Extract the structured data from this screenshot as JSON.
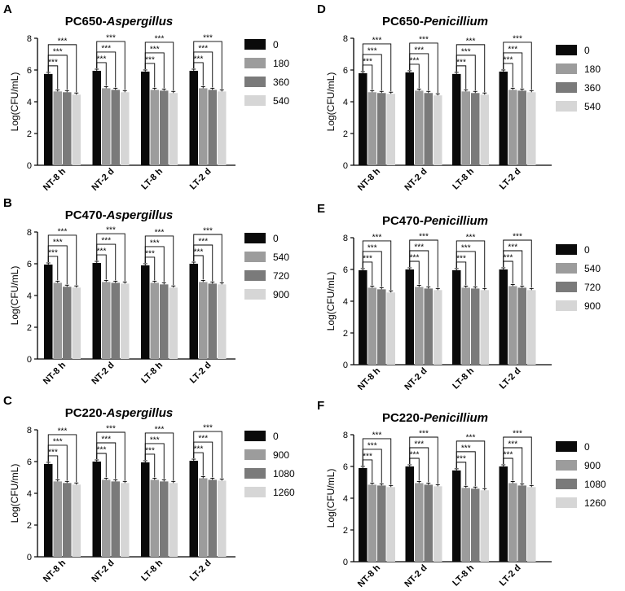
{
  "colors": {
    "s0": "#0a0a0a",
    "s1": "#9c9c9c",
    "s2": "#7a7a7a",
    "s3": "#d6d6d6"
  },
  "chart_data": [
    {
      "letter": "A",
      "type": "bar",
      "title_prefix": "PC650-",
      "title_genus": "Aspergillus",
      "ylabel": "Log(CFU/mL)",
      "ylim": [
        0,
        8
      ],
      "yticks": [
        0,
        2,
        4,
        6,
        8
      ],
      "categories": [
        "NT-8 h",
        "NT-2 d",
        "LT-8 h",
        "LT-2 d"
      ],
      "series": [
        {
          "name": "0",
          "values": [
            5.75,
            5.95,
            5.9,
            5.95
          ]
        },
        {
          "name": "180",
          "values": [
            4.65,
            4.85,
            4.75,
            4.85
          ]
        },
        {
          "name": "360",
          "values": [
            4.6,
            4.75,
            4.7,
            4.75
          ]
        },
        {
          "name": "540",
          "values": [
            4.45,
            4.6,
            4.55,
            4.65
          ]
        }
      ],
      "sig_label": "***"
    },
    {
      "letter": "D",
      "type": "bar",
      "title_prefix": "PC650-",
      "title_genus": "Penicillium",
      "ylabel": "Log(CFU/mL)",
      "ylim": [
        0,
        8
      ],
      "yticks": [
        0,
        2,
        4,
        6,
        8
      ],
      "categories": [
        "NT-8 h",
        "NT-2 d",
        "LT-8 h",
        "LT-2 d"
      ],
      "series": [
        {
          "name": "0",
          "values": [
            5.8,
            5.85,
            5.75,
            5.9
          ]
        },
        {
          "name": "180",
          "values": [
            4.6,
            4.7,
            4.65,
            4.75
          ]
        },
        {
          "name": "360",
          "values": [
            4.55,
            4.55,
            4.55,
            4.7
          ]
        },
        {
          "name": "540",
          "values": [
            4.5,
            4.4,
            4.45,
            4.6
          ]
        }
      ],
      "sig_label": "***"
    },
    {
      "letter": "B",
      "type": "bar",
      "title_prefix": "PC470-",
      "title_genus": "Aspergillus",
      "ylabel": "Log(CFU/mL)",
      "ylim": [
        0,
        8
      ],
      "yticks": [
        0,
        2,
        4,
        6,
        8
      ],
      "categories": [
        "NT-8 h",
        "NT-2 d",
        "LT-8 h",
        "LT-2 d"
      ],
      "series": [
        {
          "name": "0",
          "values": [
            5.95,
            6.05,
            5.9,
            6.0
          ]
        },
        {
          "name": "540",
          "values": [
            4.8,
            4.85,
            4.8,
            4.85
          ]
        },
        {
          "name": "720",
          "values": [
            4.55,
            4.8,
            4.7,
            4.75
          ]
        },
        {
          "name": "900",
          "values": [
            4.5,
            4.75,
            4.5,
            4.7
          ]
        }
      ],
      "sig_label": "***"
    },
    {
      "letter": "E",
      "type": "bar",
      "title_prefix": "PC470-",
      "title_genus": "Penicillium",
      "ylabel": "Log(CFU/mL)",
      "ylim": [
        0,
        8
      ],
      "yticks": [
        0,
        2,
        4,
        6,
        8
      ],
      "categories": [
        "NT-8 h",
        "NT-2 d",
        "LT-8 h",
        "LT-2 d"
      ],
      "series": [
        {
          "name": "0",
          "values": [
            5.95,
            6.0,
            5.95,
            6.0
          ]
        },
        {
          "name": "540",
          "values": [
            4.85,
            4.9,
            4.85,
            4.95
          ]
        },
        {
          "name": "720",
          "values": [
            4.75,
            4.8,
            4.8,
            4.85
          ]
        },
        {
          "name": "900",
          "values": [
            4.55,
            4.7,
            4.7,
            4.7
          ]
        }
      ],
      "sig_label": "***"
    },
    {
      "letter": "C",
      "type": "bar",
      "title_prefix": "PC220-",
      "title_genus": "Aspergillus",
      "ylabel": "Log(CFU/mL)",
      "ylim": [
        0,
        8
      ],
      "yticks": [
        0,
        2,
        4,
        6,
        8
      ],
      "categories": [
        "NT-8 h",
        "NT-2 d",
        "LT-8 h",
        "LT-2 d"
      ],
      "series": [
        {
          "name": "0",
          "values": [
            5.85,
            6.0,
            5.95,
            6.05
          ]
        },
        {
          "name": "900",
          "values": [
            4.75,
            4.85,
            4.85,
            4.95
          ]
        },
        {
          "name": "1080",
          "values": [
            4.65,
            4.75,
            4.75,
            4.85
          ]
        },
        {
          "name": "1260",
          "values": [
            4.55,
            4.65,
            4.65,
            4.8
          ]
        }
      ],
      "sig_label": "***"
    },
    {
      "letter": "F",
      "type": "bar",
      "title_prefix": "PC220-",
      "title_genus": "Penicillium",
      "ylabel": "Log(CFU/mL)",
      "ylim": [
        0,
        8
      ],
      "yticks": [
        0,
        2,
        4,
        6,
        8
      ],
      "categories": [
        "NT-8 h",
        "NT-2 d",
        "LT-8 h",
        "LT-2 d"
      ],
      "series": [
        {
          "name": "0",
          "values": [
            5.9,
            6.0,
            5.75,
            6.0
          ]
        },
        {
          "name": "900",
          "values": [
            4.85,
            4.95,
            4.65,
            4.95
          ]
        },
        {
          "name": "1080",
          "values": [
            4.8,
            4.85,
            4.6,
            4.8
          ]
        },
        {
          "name": "1260",
          "values": [
            4.7,
            4.75,
            4.5,
            4.7
          ]
        }
      ],
      "sig_label": "***"
    }
  ]
}
